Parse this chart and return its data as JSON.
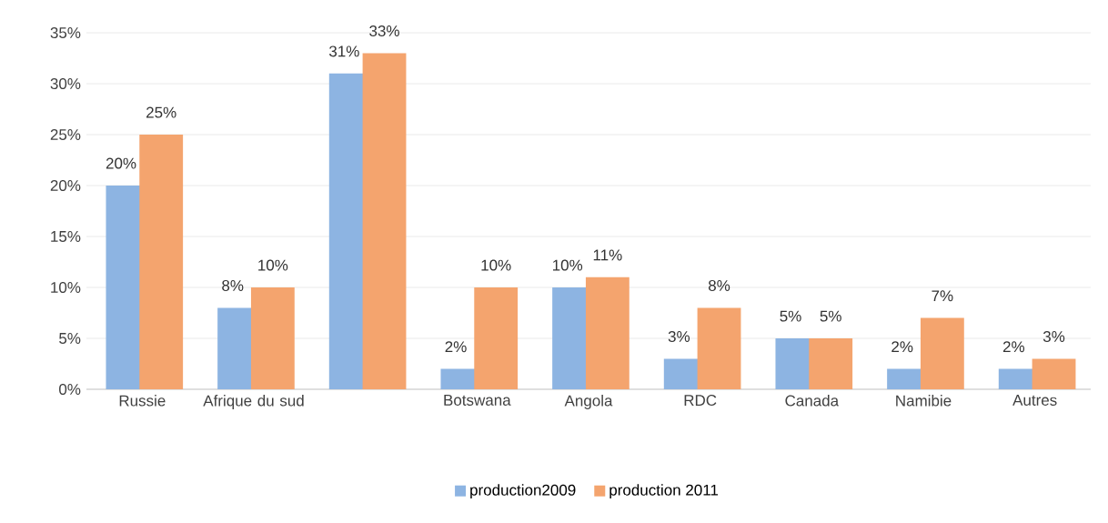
{
  "chart_data": {
    "type": "bar",
    "categories": [
      "Russie",
      "Afrique du sud",
      null,
      "Botswana",
      "Angola",
      "RDC",
      "Canada",
      "Namibie",
      "Autres"
    ],
    "series": [
      {
        "name": "production2009",
        "color": "#8db4e2",
        "values": [
          20,
          8,
          31,
          2,
          10,
          3,
          5,
          2,
          2
        ],
        "value_labels": [
          "20%",
          "8%",
          "31%",
          "2%",
          "10%",
          "3%",
          "5%",
          "2%",
          "2%"
        ]
      },
      {
        "name": "production 2011",
        "color": "#f4a46e",
        "values": [
          25,
          10,
          33,
          10,
          11,
          8,
          5,
          7,
          3
        ],
        "value_labels": [
          "25%",
          "10%",
          "33%",
          "10%",
          "11%",
          "8%",
          "5%",
          "7%",
          "3%"
        ]
      }
    ],
    "ylim": [
      0,
      35
    ],
    "yticks": [
      {
        "value": 0,
        "label": "0%"
      },
      {
        "value": 5,
        "label": "5%"
      },
      {
        "value": 10,
        "label": "10%"
      },
      {
        "value": 15,
        "label": "15%"
      },
      {
        "value": 20,
        "label": "20%"
      },
      {
        "value": 25,
        "label": "25%"
      },
      {
        "value": 30,
        "label": "30%"
      },
      {
        "value": 35,
        "label": "35%"
      }
    ],
    "grid": "y",
    "legend": "bottom"
  }
}
